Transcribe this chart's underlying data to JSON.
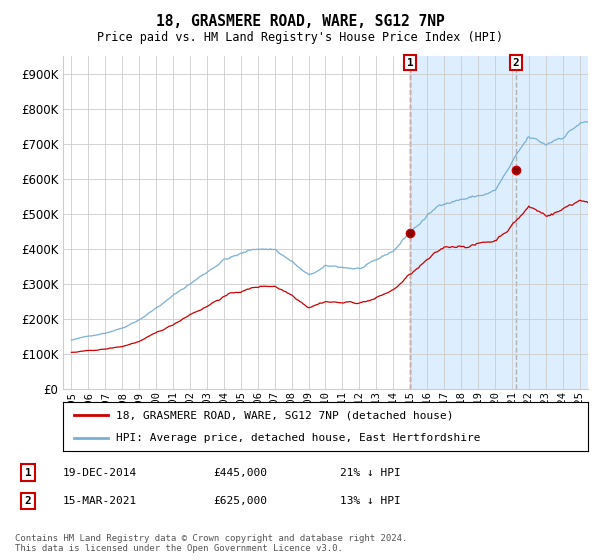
{
  "title": "18, GRASMERE ROAD, WARE, SG12 7NP",
  "subtitle": "Price paid vs. HM Land Registry's House Price Index (HPI)",
  "legend_line1": "18, GRASMERE ROAD, WARE, SG12 7NP (detached house)",
  "legend_line2": "HPI: Average price, detached house, East Hertfordshire",
  "annotation1_date": "19-DEC-2014",
  "annotation1_price": "£445,000",
  "annotation1_hpi": "21% ↓ HPI",
  "annotation1_year": 2015.0,
  "annotation1_value": 445000,
  "annotation2_date": "15-MAR-2021",
  "annotation2_price": "£625,000",
  "annotation2_hpi": "13% ↓ HPI",
  "annotation2_year": 2021.25,
  "annotation2_value": 625000,
  "footer": "Contains HM Land Registry data © Crown copyright and database right 2024.\nThis data is licensed under the Open Government Licence v3.0.",
  "red_color": "#cc0000",
  "blue_color": "#7ab0d4",
  "shade_color": "#ddeeff",
  "annotation1_vline_color": "#cc0000",
  "annotation2_vline_color": "#aaaaaa",
  "annotation_box_color": "#cc0000",
  "grid_color": "#cccccc",
  "ylim": [
    0,
    950000
  ],
  "yticks": [
    0,
    100000,
    200000,
    300000,
    400000,
    500000,
    600000,
    700000,
    800000,
    900000
  ],
  "xmin": 1995.0,
  "xmax": 2025.5
}
